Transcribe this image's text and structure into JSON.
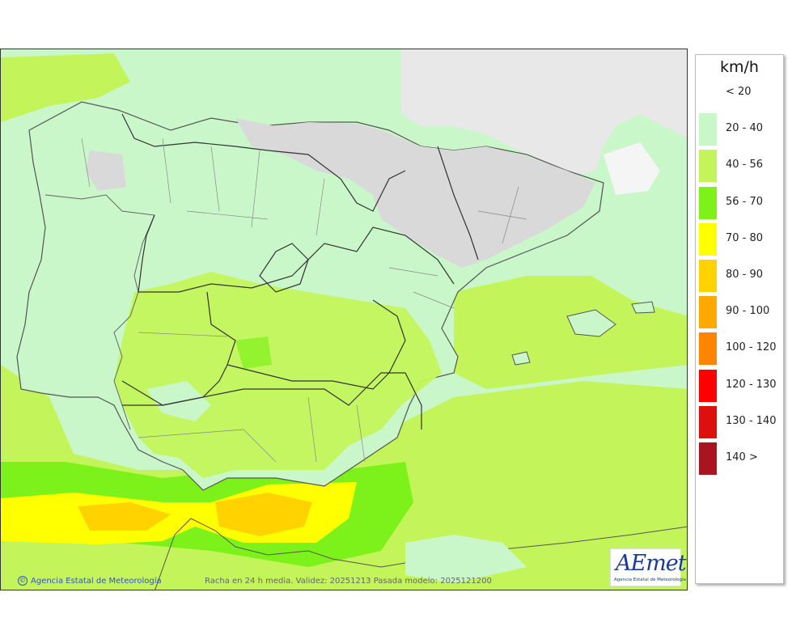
{
  "legend": {
    "unit": "km/h",
    "classes": [
      {
        "label": "< 20",
        "color": "#ffffff"
      },
      {
        "label": "20 - 40",
        "color": "#c8f7c8"
      },
      {
        "label": "40 - 56",
        "color": "#c3f55b"
      },
      {
        "label": "56 - 70",
        "color": "#7df21a"
      },
      {
        "label": "70 - 80",
        "color": "#ffff00"
      },
      {
        "label": "80 - 90",
        "color": "#ffd200"
      },
      {
        "label": "90 - 100",
        "color": "#ffa900"
      },
      {
        "label": "100 - 120",
        "color": "#ff8400"
      },
      {
        "label": "120 - 130",
        "color": "#ff0000"
      },
      {
        "label": "130 - 140",
        "color": "#dd0f0f"
      },
      {
        "label": "140 >",
        "color": "#a91421"
      }
    ]
  },
  "footer": {
    "copyright": "Agencia Estatal de Meteorología",
    "validity": "Racha en 24 h media. Validez: 20251213 Pasada modelo: 2025121200"
  },
  "logo": {
    "name": "AEmet",
    "subtitle": "Agencia Estatal de Meteorología"
  }
}
